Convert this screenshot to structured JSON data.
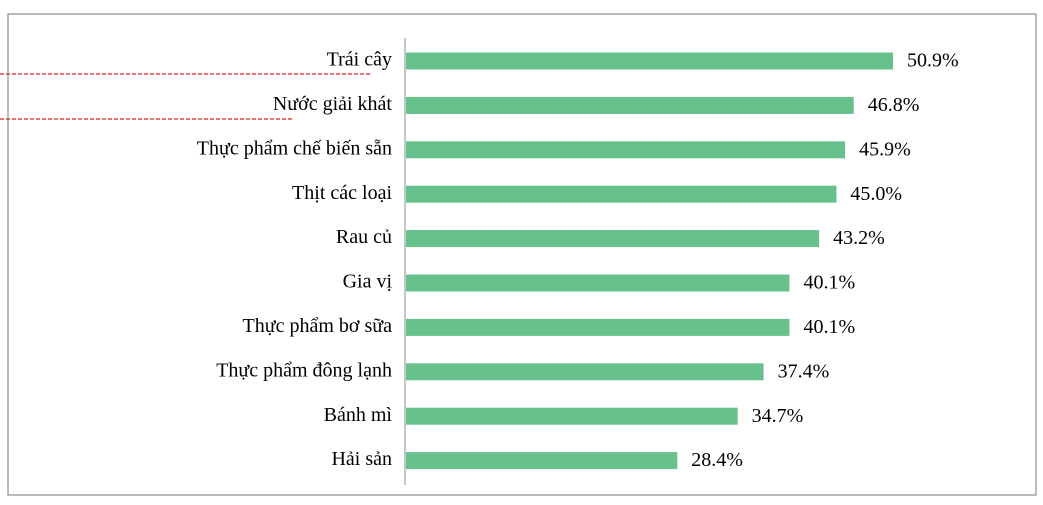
{
  "chart_data": {
    "type": "bar",
    "orientation": "horizontal",
    "categories": [
      "Trái cây",
      "Nước giải khát",
      "Thực phẩm chế biến sẵn",
      "Thịt các loại",
      "Rau củ",
      "Gia vị",
      "Thực phẩm bơ sữa",
      "Thực phẩm đông lạnh",
      "Bánh mì",
      "Hải sản"
    ],
    "values": [
      50.9,
      46.8,
      45.9,
      45.0,
      43.2,
      40.1,
      40.1,
      37.4,
      34.7,
      28.4
    ],
    "value_labels": [
      "50.9%",
      "46.8%",
      "45.9%",
      "45.0%",
      "43.2%",
      "40.1%",
      "40.1%",
      "37.4%",
      "34.7%",
      "28.4%"
    ],
    "color": "#66c18c"
  }
}
